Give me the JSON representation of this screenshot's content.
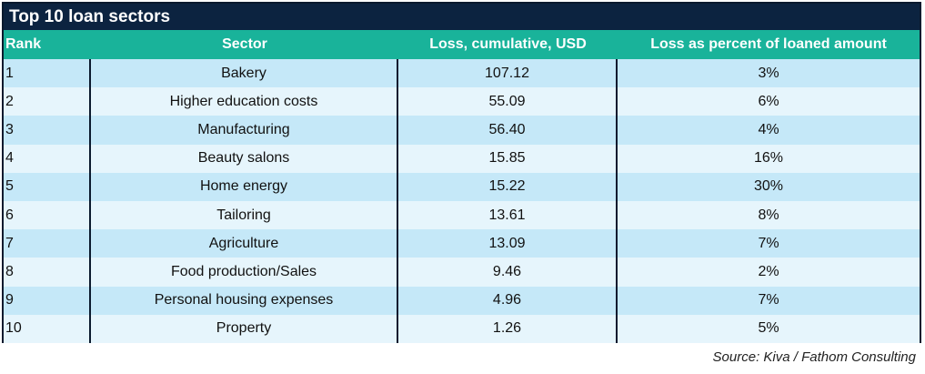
{
  "table": {
    "title": "Top 10 loan sectors",
    "headers": [
      "Rank",
      "Sector",
      "Loss, cumulative, USD",
      "Loss as percent of loaned amount"
    ],
    "rows": [
      [
        "1",
        "Bakery",
        "107.12",
        "3%"
      ],
      [
        "2",
        "Higher education costs",
        "55.09",
        "6%"
      ],
      [
        "3",
        "Manufacturing",
        "56.40",
        "4%"
      ],
      [
        "4",
        "Beauty salons",
        "15.85",
        "16%"
      ],
      [
        "5",
        "Home energy",
        "15.22",
        "30%"
      ],
      [
        "6",
        "Tailoring",
        "13.61",
        "8%"
      ],
      [
        "7",
        "Agriculture",
        "13.09",
        "7%"
      ],
      [
        "8",
        "Food production/Sales",
        "9.46",
        "2%"
      ],
      [
        "9",
        "Personal housing expenses",
        "4.96",
        "7%"
      ],
      [
        "10",
        "Property",
        "1.26",
        "5%"
      ]
    ],
    "source": "Source: Kiva / Fathom Consulting"
  },
  "colors": {
    "title_bg": "#0c2340",
    "header_bg": "#19b39a",
    "row_odd": "#c5e8f8",
    "row_even": "#e6f5fc"
  },
  "chart_data": {
    "type": "table",
    "title": "Top 10 loan sectors",
    "columns": [
      "Rank",
      "Sector",
      "Loss, cumulative, USD",
      "Loss as percent of loaned amount"
    ],
    "rows": [
      [
        1,
        "Bakery",
        107.12,
        "3%"
      ],
      [
        2,
        "Higher education costs",
        55.09,
        "6%"
      ],
      [
        3,
        "Manufacturing",
        56.4,
        "4%"
      ],
      [
        4,
        "Beauty salons",
        15.85,
        "16%"
      ],
      [
        5,
        "Home energy",
        15.22,
        "30%"
      ],
      [
        6,
        "Tailoring",
        13.61,
        "8%"
      ],
      [
        7,
        "Agriculture",
        13.09,
        "7%"
      ],
      [
        8,
        "Food production/Sales",
        9.46,
        "2%"
      ],
      [
        9,
        "Personal housing expenses",
        4.96,
        "7%"
      ],
      [
        10,
        "Property",
        1.26,
        "5%"
      ]
    ]
  }
}
